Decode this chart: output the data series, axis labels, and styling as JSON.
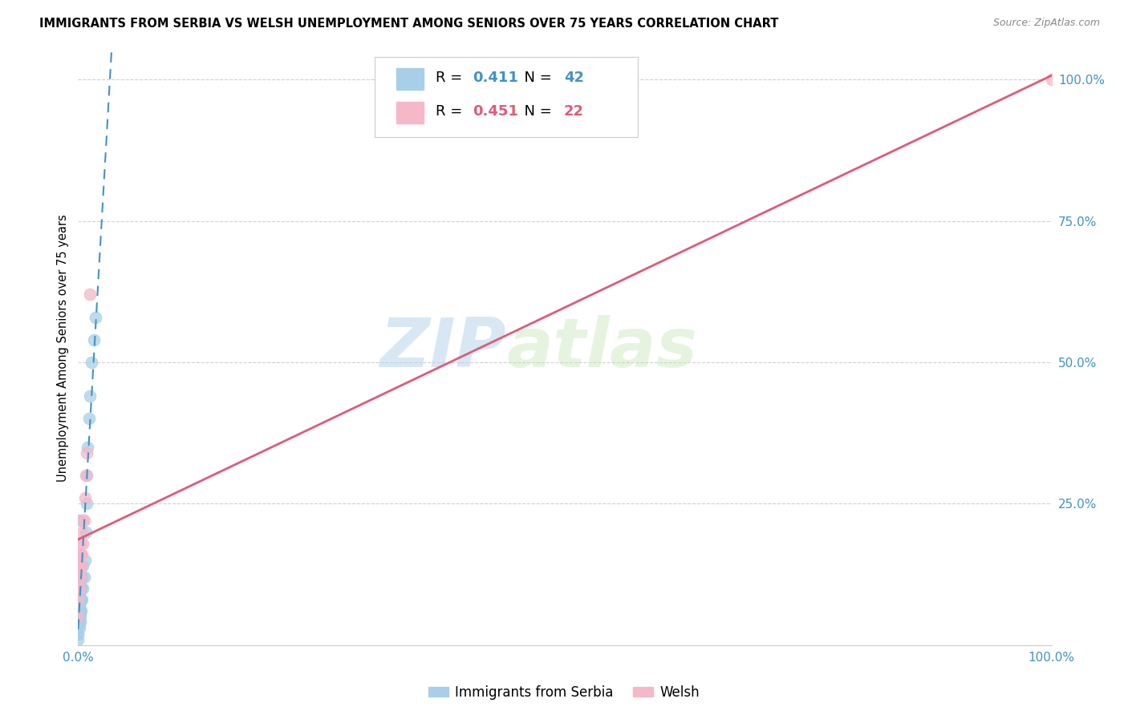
{
  "title": "IMMIGRANTS FROM SERBIA VS WELSH UNEMPLOYMENT AMONG SENIORS OVER 75 YEARS CORRELATION CHART",
  "source": "Source: ZipAtlas.com",
  "ylabel": "Unemployment Among Seniors over 75 years",
  "legend_label_blue": "Immigrants from Serbia",
  "legend_label_pink": "Welsh",
  "r_blue": "0.411",
  "n_blue": "42",
  "r_pink": "0.451",
  "n_pink": "22",
  "blue_color": "#a8cfe8",
  "pink_color": "#f4b8c8",
  "blue_line_color": "#4292c6",
  "pink_line_color": "#e05a7a",
  "watermark_zip": "ZIP",
  "watermark_atlas": "atlas",
  "grid_color": "#d0d0d0",
  "axis_color": "#4292c6",
  "blue_scatter_x": [
    0.0,
    0.0,
    0.0,
    0.0,
    0.0,
    0.0,
    0.0,
    0.0,
    0.001,
    0.001,
    0.001,
    0.001,
    0.001,
    0.001,
    0.001,
    0.001,
    0.001,
    0.001,
    0.002,
    0.002,
    0.002,
    0.002,
    0.002,
    0.002,
    0.003,
    0.003,
    0.003,
    0.004,
    0.004,
    0.005,
    0.005,
    0.006,
    0.007,
    0.008,
    0.009,
    0.009,
    0.01,
    0.011,
    0.012,
    0.014,
    0.016,
    0.018
  ],
  "blue_scatter_y": [
    0.02,
    0.02,
    0.03,
    0.04,
    0.05,
    0.06,
    0.07,
    0.01,
    0.03,
    0.04,
    0.05,
    0.06,
    0.07,
    0.08,
    0.09,
    0.1,
    0.14,
    0.22,
    0.04,
    0.05,
    0.06,
    0.08,
    0.12,
    0.16,
    0.06,
    0.08,
    0.1,
    0.08,
    0.12,
    0.1,
    0.14,
    0.12,
    0.15,
    0.2,
    0.25,
    0.3,
    0.35,
    0.4,
    0.44,
    0.5,
    0.54,
    0.58
  ],
  "pink_scatter_x": [
    0.0,
    0.0,
    0.0,
    0.001,
    0.001,
    0.001,
    0.001,
    0.002,
    0.002,
    0.002,
    0.003,
    0.003,
    0.004,
    0.004,
    0.005,
    0.005,
    0.006,
    0.007,
    0.008,
    0.009,
    0.012,
    1.0
  ],
  "pink_scatter_y": [
    0.05,
    0.08,
    0.1,
    0.1,
    0.12,
    0.14,
    0.16,
    0.12,
    0.14,
    0.18,
    0.14,
    0.16,
    0.16,
    0.2,
    0.18,
    0.22,
    0.22,
    0.26,
    0.3,
    0.34,
    0.62,
    1.0
  ],
  "xlim": [
    0.0,
    1.0
  ],
  "ylim": [
    0.0,
    1.05
  ]
}
